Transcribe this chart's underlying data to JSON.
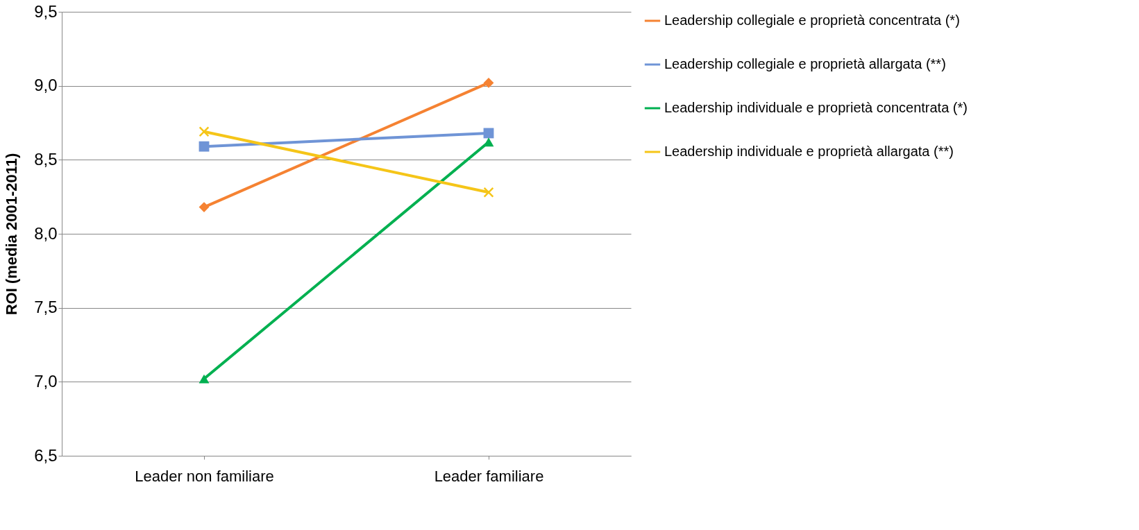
{
  "chart_data": {
    "type": "line",
    "ylabel": "ROI (media 2001-2011)",
    "categories": [
      "Leader non familiare",
      "Leader familiare"
    ],
    "ylim": [
      6.5,
      9.5
    ],
    "yticks": [
      {
        "value": 6.5,
        "label": "6,5"
      },
      {
        "value": 7.0,
        "label": "7,0"
      },
      {
        "value": 7.5,
        "label": "7,5"
      },
      {
        "value": 8.0,
        "label": "8,0"
      },
      {
        "value": 8.5,
        "label": "8,5"
      },
      {
        "value": 9.0,
        "label": "9,0"
      },
      {
        "value": 9.5,
        "label": "9,5"
      }
    ],
    "grid": "y",
    "legend": "right",
    "line_style": "solid",
    "series": [
      {
        "name": "Leadership collegiale e proprietà concentrata (*)",
        "color": "#f58232",
        "marker": "diamond",
        "values": [
          8.18,
          9.02
        ]
      },
      {
        "name": "Leadership collegiale e proprietà allargata (**)",
        "color": "#6f94d6",
        "marker": "square",
        "values": [
          8.59,
          8.68
        ]
      },
      {
        "name": "Leadership individuale e proprietà concentrata (*)",
        "color": "#00b050",
        "marker": "triangle",
        "values": [
          7.02,
          8.62
        ]
      },
      {
        "name": "Leadership individuale e proprietà allargata (**)",
        "color": "#f5c518",
        "marker": "cross",
        "values": [
          8.69,
          8.28
        ]
      }
    ]
  }
}
